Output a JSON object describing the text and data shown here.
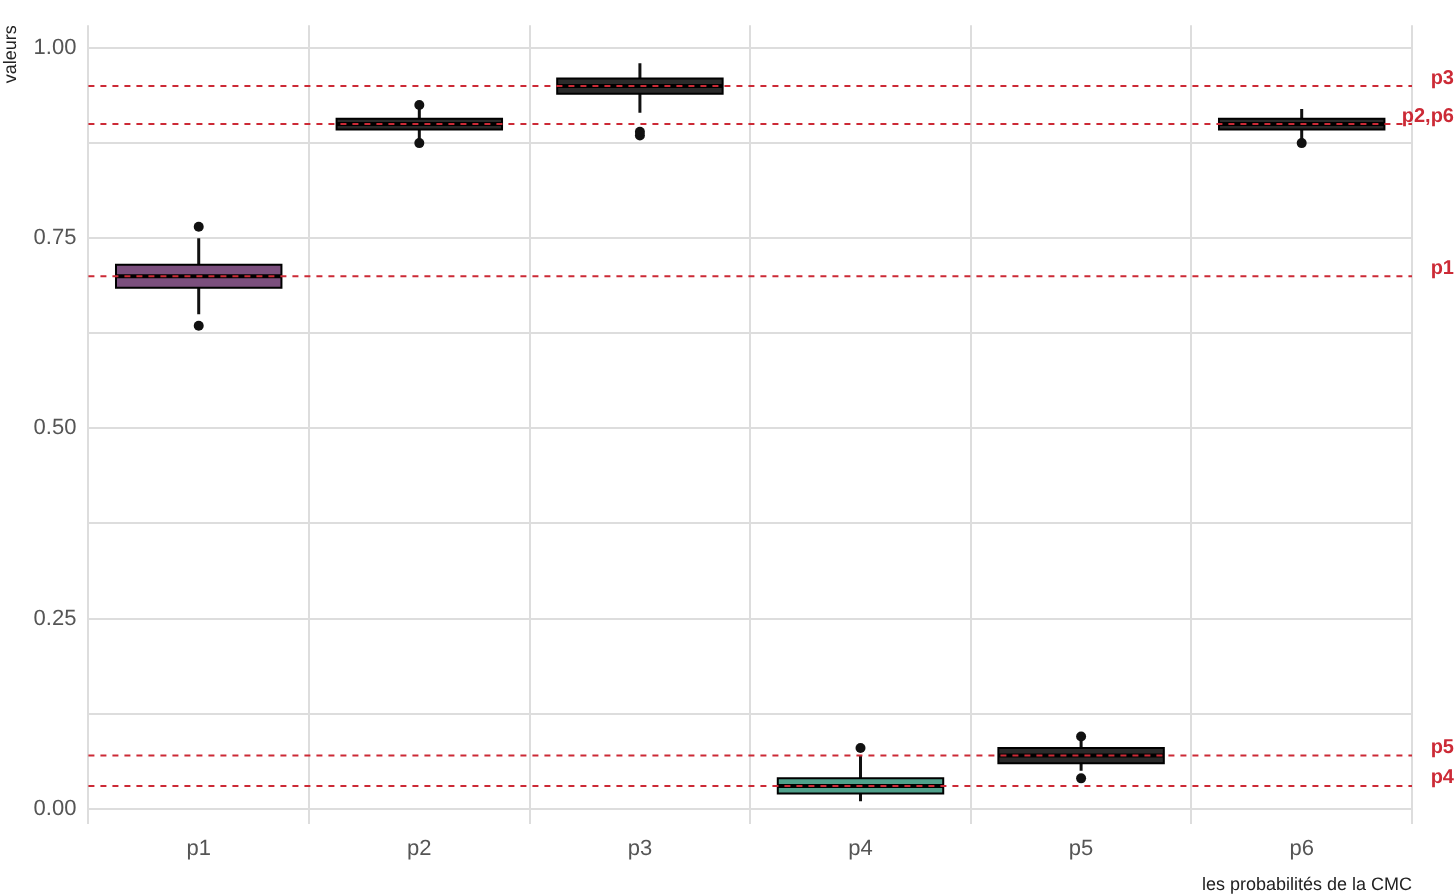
{
  "chart_data": {
    "type": "box",
    "ylabel": "valeurs",
    "xlabel": "les probabilités de la CMC",
    "categories": [
      "p1",
      "p2",
      "p3",
      "p4",
      "p5",
      "p6"
    ],
    "colors": [
      "#7b4f7d",
      "#2a2a2a",
      "#2a2a2a",
      "#4fa08b",
      "#2a2a2a",
      "#2a2a2a"
    ],
    "boxes": [
      {
        "low": 0.65,
        "q1": 0.685,
        "median": 0.7,
        "q3": 0.715,
        "high": 0.75,
        "outliers": [
          0.635,
          0.765
        ]
      },
      {
        "low": 0.88,
        "q1": 0.893,
        "median": 0.9,
        "q3": 0.907,
        "high": 0.92,
        "outliers": [
          0.875,
          0.925
        ]
      },
      {
        "low": 0.915,
        "q1": 0.94,
        "median": 0.95,
        "q3": 0.96,
        "high": 0.98,
        "outliers": [
          0.885,
          0.89
        ]
      },
      {
        "low": 0.01,
        "q1": 0.02,
        "median": 0.03,
        "q3": 0.04,
        "high": 0.07,
        "outliers": [
          0.08
        ]
      },
      {
        "low": 0.05,
        "q1": 0.06,
        "median": 0.07,
        "q3": 0.08,
        "high": 0.09,
        "outliers": [
          0.04,
          0.095
        ]
      },
      {
        "low": 0.88,
        "q1": 0.893,
        "median": 0.9,
        "q3": 0.907,
        "high": 0.92,
        "outliers": [
          0.875
        ]
      }
    ],
    "ylim": [
      -0.02,
      1.03
    ],
    "yticks": [
      {
        "value": 0,
        "label": "0.00"
      },
      {
        "value": 0.125,
        "label": null
      },
      {
        "value": 0.25,
        "label": "0.25"
      },
      {
        "value": 0.375,
        "label": null
      },
      {
        "value": 0.5,
        "label": "0.50"
      },
      {
        "value": 0.625,
        "label": null
      },
      {
        "value": 0.75,
        "label": "0.75"
      },
      {
        "value": 0.875,
        "label": null
      },
      {
        "value": 1,
        "label": "1.00"
      }
    ],
    "ref_lines": [
      {
        "axis": "y",
        "value": 0.7,
        "label": "p1",
        "color": "#cc2a36",
        "line_style": "dashed"
      },
      {
        "axis": "y",
        "value": 0.9,
        "label": "p2,p6",
        "color": "#cc2a36",
        "line_style": "dashed"
      },
      {
        "axis": "y",
        "value": 0.95,
        "label": "p3",
        "color": "#cc2a36",
        "line_style": "dashed"
      },
      {
        "axis": "y",
        "value": 0.03,
        "label": "p4",
        "color": "#cc2a36",
        "line_style": "dashed"
      },
      {
        "axis": "y",
        "value": 0.07,
        "label": "p5",
        "color": "#cc2a36",
        "line_style": "dashed"
      }
    ],
    "grid": true,
    "legend": false
  }
}
